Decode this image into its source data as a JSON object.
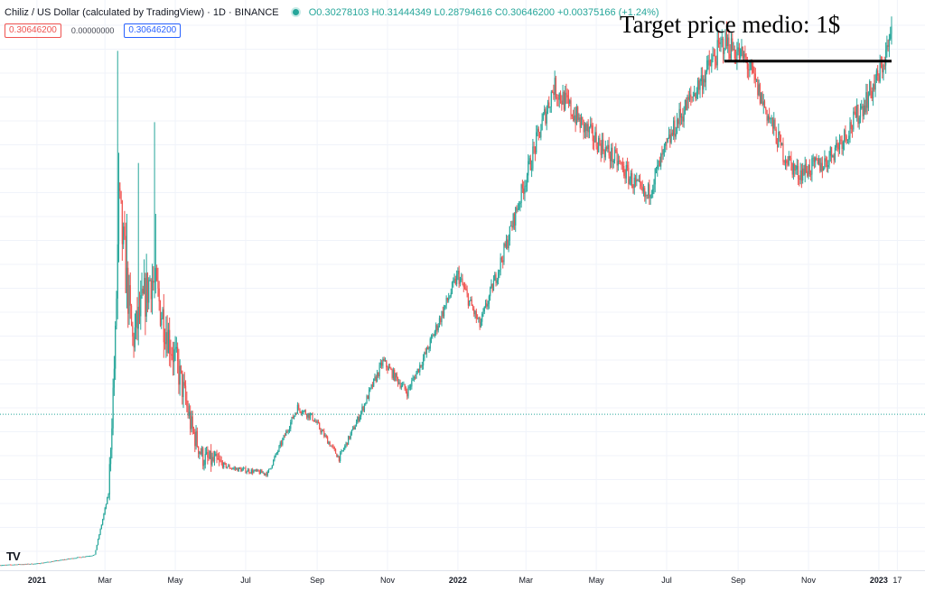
{
  "header": {
    "symbol": "Chiliz / US Dollar (calculated by TradingView) · 1D · BINANCE",
    "open": "O0.30278103",
    "high": "H0.31444349",
    "low": "L0.28794616",
    "close": "C0.30646200",
    "change": "+0.00375166 (+1.24%)",
    "status_color": "#26a69a"
  },
  "badges": {
    "sell": "0.30646200",
    "spread": "0.00000000",
    "buy": "0.30646200"
  },
  "annotation": "Target price medio: 1$",
  "logo_text": "TV",
  "chart_data": {
    "type": "candlestick",
    "colors": {
      "up": "#26a69a",
      "down": "#ef5350",
      "target_line": "#000000",
      "price_line": "#26a69a"
    },
    "grid": true,
    "x_ticks": [
      {
        "label": "2021",
        "date": "2021-01-01",
        "bold": true
      },
      {
        "label": "Mar",
        "date": "2021-03-01"
      },
      {
        "label": "May",
        "date": "2021-05-01"
      },
      {
        "label": "Jul",
        "date": "2021-07-01"
      },
      {
        "label": "Sep",
        "date": "2021-09-01"
      },
      {
        "label": "Nov",
        "date": "2021-11-01"
      },
      {
        "label": "2022",
        "date": "2022-01-01",
        "bold": true
      },
      {
        "label": "Mar",
        "date": "2022-03-01"
      },
      {
        "label": "May",
        "date": "2022-05-01"
      },
      {
        "label": "Jul",
        "date": "2022-07-01"
      },
      {
        "label": "Sep",
        "date": "2022-09-01"
      },
      {
        "label": "Nov",
        "date": "2022-11-01"
      },
      {
        "label": "2023",
        "date": "2023-01-01",
        "bold": true
      },
      {
        "label": "17",
        "date": "2023-01-17"
      }
    ],
    "x_range": [
      "2020-11-30",
      "2023-02-10"
    ],
    "y_range": [
      0,
      1.12
    ],
    "last_price": 0.306462,
    "target_price": 1.0,
    "target_range": [
      "2022-08-20",
      "2023-01-12"
    ],
    "trend_anchors": [
      [
        "2020-11-30",
        0.01
      ],
      [
        "2021-01-01",
        0.013
      ],
      [
        "2021-02-20",
        0.03
      ],
      [
        "2021-03-04",
        0.15
      ],
      [
        "2021-03-10",
        0.45
      ],
      [
        "2021-03-13",
        0.72
      ],
      [
        "2021-03-25",
        0.45
      ],
      [
        "2021-04-10",
        0.58
      ],
      [
        "2021-04-20",
        0.5
      ],
      [
        "2021-05-05",
        0.38
      ],
      [
        "2021-05-15",
        0.28
      ],
      [
        "2021-05-25",
        0.22
      ],
      [
        "2021-06-20",
        0.2
      ],
      [
        "2021-07-20",
        0.19
      ],
      [
        "2021-08-15",
        0.32
      ],
      [
        "2021-08-28",
        0.3
      ],
      [
        "2021-09-20",
        0.22
      ],
      [
        "2021-10-05",
        0.29
      ],
      [
        "2021-10-28",
        0.41
      ],
      [
        "2021-11-18",
        0.35
      ],
      [
        "2021-12-05",
        0.43
      ],
      [
        "2022-01-01",
        0.58
      ],
      [
        "2022-01-20",
        0.48
      ],
      [
        "2022-02-12",
        0.64
      ],
      [
        "2022-03-10",
        0.84
      ],
      [
        "2022-03-25",
        0.95
      ],
      [
        "2022-04-20",
        0.87
      ],
      [
        "2022-05-20",
        0.8
      ],
      [
        "2022-06-13",
        0.73
      ],
      [
        "2022-07-10",
        0.88
      ],
      [
        "2022-08-20",
        1.04
      ],
      [
        "2022-09-08",
        1.0
      ],
      [
        "2022-10-10",
        0.82
      ],
      [
        "2022-10-22",
        0.78
      ],
      [
        "2022-11-15",
        0.8
      ],
      [
        "2022-12-10",
        0.88
      ],
      [
        "2023-01-01",
        0.97
      ],
      [
        "2023-01-12",
        1.05
      ]
    ],
    "spikes": [
      [
        "2021-03-12",
        1.02
      ],
      [
        "2021-03-13",
        0.82
      ],
      [
        "2021-03-14",
        0.75
      ],
      [
        "2021-03-20",
        0.7
      ],
      [
        "2021-03-30",
        0.8
      ],
      [
        "2021-04-13",
        0.88
      ],
      [
        "2021-04-14",
        0.7
      ]
    ]
  }
}
